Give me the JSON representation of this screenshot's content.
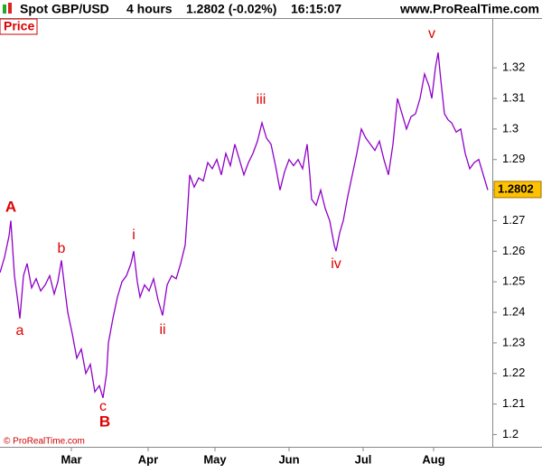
{
  "header": {
    "instrument": "Spot GBP/USD",
    "timeframe": "4 hours",
    "quote": "1.2802 (-0.02%)",
    "time": "16:15:07",
    "site": "www.ProRealTime.com"
  },
  "panel_label": "Price",
  "copyright": "© ProRealTime.com",
  "chart_data": {
    "type": "line",
    "series": [
      {
        "name": "Price",
        "color": "#8f00c8",
        "x": [
          0,
          5,
          10,
          12,
          16,
          20,
          22,
          26,
          30,
          35,
          40,
          45,
          50,
          55,
          60,
          64,
          68,
          72,
          75,
          80,
          85,
          90,
          95,
          100,
          105,
          110,
          114,
          118,
          120,
          125,
          130,
          135,
          140,
          145,
          148,
          152,
          155,
          160,
          165,
          170,
          175,
          180,
          185,
          190,
          195,
          200,
          205,
          208,
          210,
          215,
          220,
          225,
          230,
          235,
          240,
          245,
          250,
          255,
          260,
          265,
          270,
          275,
          280,
          285,
          290,
          295,
          300,
          305,
          310,
          315,
          320,
          325,
          330,
          335,
          340,
          343,
          345,
          350,
          355,
          360,
          365,
          370,
          372,
          376,
          380,
          385,
          390,
          395,
          400,
          405,
          410,
          415,
          420,
          425,
          430,
          435,
          440,
          445,
          450,
          455,
          460,
          465,
          470,
          475,
          478,
          482,
          485,
          488,
          492,
          496,
          500,
          505,
          510,
          515,
          520,
          525,
          530,
          535,
          540
        ],
        "values": [
          1.253,
          1.258,
          1.265,
          1.27,
          1.252,
          1.243,
          1.238,
          1.252,
          1.256,
          1.248,
          1.251,
          1.247,
          1.249,
          1.252,
          1.246,
          1.25,
          1.257,
          1.247,
          1.24,
          1.233,
          1.225,
          1.228,
          1.22,
          1.223,
          1.214,
          1.216,
          1.212,
          1.22,
          1.23,
          1.238,
          1.245,
          1.25,
          1.252,
          1.256,
          1.26,
          1.25,
          1.245,
          1.249,
          1.247,
          1.251,
          1.244,
          1.239,
          1.249,
          1.252,
          1.251,
          1.256,
          1.262,
          1.275,
          1.285,
          1.281,
          1.284,
          1.283,
          1.289,
          1.287,
          1.29,
          1.285,
          1.292,
          1.288,
          1.295,
          1.29,
          1.285,
          1.289,
          1.292,
          1.296,
          1.302,
          1.297,
          1.295,
          1.288,
          1.28,
          1.286,
          1.29,
          1.288,
          1.29,
          1.287,
          1.295,
          1.285,
          1.277,
          1.275,
          1.28,
          1.274,
          1.27,
          1.262,
          1.26,
          1.266,
          1.27,
          1.278,
          1.285,
          1.292,
          1.3,
          1.297,
          1.295,
          1.293,
          1.296,
          1.29,
          1.285,
          1.295,
          1.31,
          1.305,
          1.3,
          1.304,
          1.305,
          1.31,
          1.318,
          1.314,
          1.31,
          1.32,
          1.325,
          1.316,
          1.305,
          1.303,
          1.302,
          1.299,
          1.3,
          1.292,
          1.287,
          1.289,
          1.29,
          1.285,
          1.28
        ]
      }
    ],
    "xlim": [
      0,
      545
    ],
    "xticks": [
      {
        "value": 79,
        "label": "Mar"
      },
      {
        "value": 164,
        "label": "Apr"
      },
      {
        "value": 238,
        "label": "May"
      },
      {
        "value": 320,
        "label": "Jun"
      },
      {
        "value": 402,
        "label": "Jul"
      },
      {
        "value": 480,
        "label": "Aug"
      }
    ],
    "ylim": [
      1.196,
      1.336
    ],
    "yticks": [
      1.2,
      1.21,
      1.22,
      1.23,
      1.24,
      1.25,
      1.26,
      1.27,
      1.28,
      1.29,
      1.3,
      1.31,
      1.32
    ],
    "last_price": 1.2802,
    "annotations": [
      "A",
      "a",
      "b",
      "c",
      "B",
      "i",
      "ii",
      "iii",
      "iv",
      "v"
    ]
  }
}
